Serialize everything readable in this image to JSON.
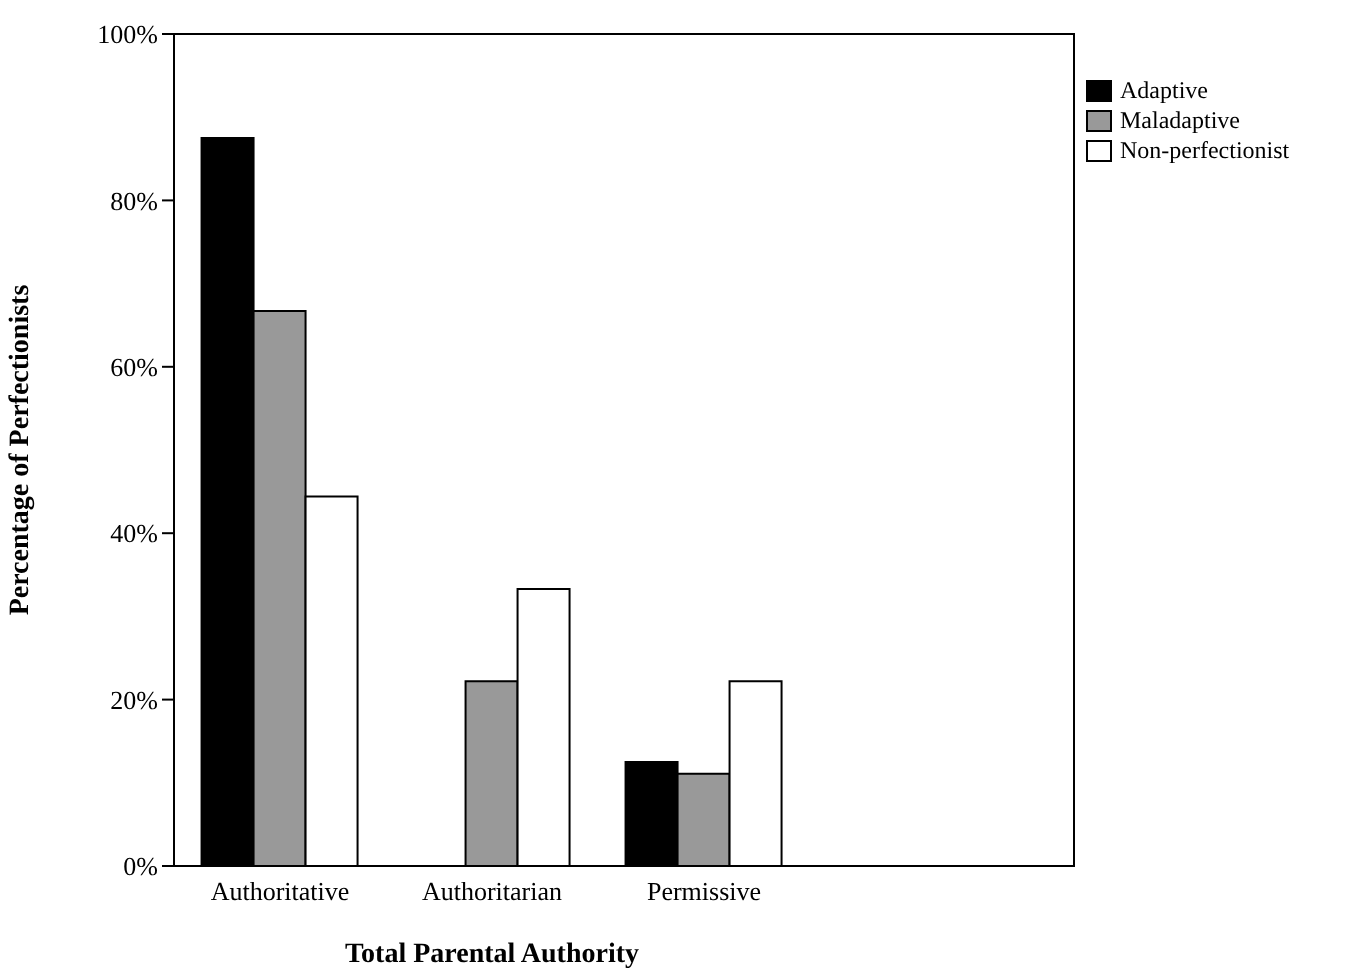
{
  "chart_data": {
    "type": "bar",
    "xlabel": "Total Parental Authority",
    "ylabel": "Percentage of Perfectionists",
    "categories": [
      "Authoritative",
      "Authoritarian",
      "Permissive"
    ],
    "series": [
      {
        "name": "Adaptive",
        "color": "#000000",
        "values": [
          87.5,
          0,
          12.5
        ]
      },
      {
        "name": "Maladaptive",
        "color": "#999999",
        "values": [
          66.7,
          22.2,
          11.1
        ]
      },
      {
        "name": "Non-perfectionist",
        "color": "#ffffff",
        "values": [
          44.4,
          33.3,
          22.2
        ]
      }
    ],
    "ylim": [
      0,
      100
    ],
    "yticks": [
      {
        "value": 0,
        "label": "0%"
      },
      {
        "value": 20,
        "label": "20%"
      },
      {
        "value": 40,
        "label": "40%"
      },
      {
        "value": 60,
        "label": "60%"
      },
      {
        "value": 80,
        "label": "80%"
      },
      {
        "value": 100,
        "label": "100%"
      }
    ],
    "grid": false,
    "legend": "top right"
  }
}
